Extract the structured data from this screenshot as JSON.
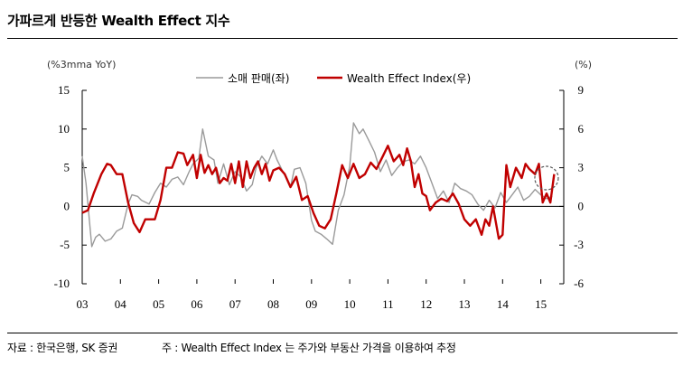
{
  "header": {
    "title": "가파르게 반등한 Wealth Effect 지수"
  },
  "footer": {
    "source": "자료 : 한국은행, SK 증권",
    "note": "주 : Wealth Effect Index 는 주가와 부동산 가격을 이용하여 추정"
  },
  "chart_data": {
    "type": "line",
    "left_unit": "(%3mma  YoY)",
    "right_unit": "(%)",
    "legend": {
      "placement": "top-center"
    },
    "x_ticks": [
      "03",
      "04",
      "05",
      "06",
      "07",
      "08",
      "09",
      "10",
      "11",
      "12",
      "13",
      "14",
      "15"
    ],
    "x_range": [
      2003.0,
      2015.6
    ],
    "y_left_range": [
      -10,
      15
    ],
    "y_left_ticks": [
      -10,
      -5,
      0,
      5,
      10,
      15
    ],
    "y_right_range": [
      -6,
      9
    ],
    "y_right_ticks": [
      -6,
      -3,
      0,
      3,
      6,
      9
    ],
    "grid": false,
    "series": [
      {
        "name": "소매 판매(좌)",
        "axis": "left",
        "color": "#9a9a9a",
        "x": [
          2003.0,
          2003.1,
          2003.25,
          2003.35,
          2003.45,
          2003.6,
          2003.75,
          2003.9,
          2004.05,
          2004.2,
          2004.3,
          2004.45,
          2004.55,
          2004.75,
          2004.9,
          2005.05,
          2005.2,
          2005.35,
          2005.5,
          2005.65,
          2005.8,
          2005.9,
          2006.05,
          2006.15,
          2006.3,
          2006.45,
          2006.55,
          2006.7,
          2006.85,
          2007.0,
          2007.15,
          2007.3,
          2007.45,
          2007.55,
          2007.7,
          2007.85,
          2008.0,
          2008.1,
          2008.2,
          2008.35,
          2008.45,
          2008.55,
          2008.7,
          2008.85,
          2009.0,
          2009.1,
          2009.25,
          2009.4,
          2009.55,
          2009.7,
          2009.85,
          2010.0,
          2010.1,
          2010.25,
          2010.35,
          2010.5,
          2010.65,
          2010.8,
          2010.95,
          2011.1,
          2011.25,
          2011.4,
          2011.55,
          2011.7,
          2011.85,
          2012.0,
          2012.15,
          2012.3,
          2012.45,
          2012.6,
          2012.75,
          2012.9,
          2013.05,
          2013.2,
          2013.35,
          2013.5,
          2013.65,
          2013.8,
          2013.95,
          2014.1,
          2014.25,
          2014.4,
          2014.55,
          2014.7,
          2014.85,
          2015.0,
          2015.15,
          2015.3
        ],
        "values": [
          6.5,
          3.0,
          -5.2,
          -4.0,
          -3.6,
          -4.5,
          -4.2,
          -3.2,
          -2.8,
          0.3,
          1.5,
          1.3,
          0.8,
          0.3,
          1.8,
          3.0,
          2.5,
          3.5,
          3.8,
          2.8,
          4.5,
          5.5,
          6.2,
          10.0,
          6.5,
          6.0,
          3.0,
          5.5,
          2.8,
          4.5,
          3.8,
          2.0,
          2.8,
          5.0,
          6.5,
          5.5,
          7.3,
          6.0,
          5.0,
          3.5,
          2.5,
          4.8,
          5.0,
          3.0,
          -1.8,
          -3.2,
          -3.6,
          -4.2,
          -4.9,
          -0.5,
          1.5,
          5.2,
          10.8,
          9.4,
          10.0,
          8.5,
          7.0,
          4.5,
          6.0,
          4.0,
          5.0,
          5.8,
          6.0,
          5.5,
          6.5,
          5.0,
          3.0,
          1.0,
          2.0,
          0.5,
          3.0,
          2.3,
          2.0,
          1.5,
          0.3,
          -0.5,
          0.8,
          -0.2,
          1.8,
          0.5,
          1.5,
          2.5,
          0.8,
          1.3,
          2.2,
          1.5,
          1.0,
          1.3
        ]
      },
      {
        "name": "Wealth Effect Index(우)",
        "axis": "right",
        "color": "#c00000",
        "x": [
          2003.0,
          2003.15,
          2003.3,
          2003.5,
          2003.65,
          2003.75,
          2003.9,
          2004.05,
          2004.2,
          2004.35,
          2004.5,
          2004.65,
          2004.75,
          2004.9,
          2005.05,
          2005.2,
          2005.35,
          2005.5,
          2005.65,
          2005.75,
          2005.9,
          2006.0,
          2006.1,
          2006.2,
          2006.3,
          2006.4,
          2006.5,
          2006.6,
          2006.7,
          2006.8,
          2006.9,
          2007.0,
          2007.1,
          2007.2,
          2007.3,
          2007.4,
          2007.5,
          2007.6,
          2007.7,
          2007.8,
          2007.9,
          2008.0,
          2008.15,
          2008.3,
          2008.45,
          2008.6,
          2008.75,
          2008.9,
          2009.05,
          2009.2,
          2009.35,
          2009.5,
          2009.65,
          2009.8,
          2009.95,
          2010.1,
          2010.25,
          2010.4,
          2010.55,
          2010.7,
          2010.85,
          2011.0,
          2011.15,
          2011.3,
          2011.4,
          2011.5,
          2011.6,
          2011.7,
          2011.8,
          2011.9,
          2012.0,
          2012.1,
          2012.25,
          2012.4,
          2012.55,
          2012.7,
          2012.85,
          2013.0,
          2013.15,
          2013.3,
          2013.45,
          2013.55,
          2013.65,
          2013.75,
          2013.9,
          2014.0,
          2014.1,
          2014.2,
          2014.35,
          2014.5,
          2014.6,
          2014.7,
          2014.85,
          2014.95,
          2015.05,
          2015.15,
          2015.25,
          2015.35
        ],
        "values": [
          -0.5,
          -0.3,
          1.0,
          2.5,
          3.3,
          3.2,
          2.5,
          2.5,
          0.3,
          -1.3,
          -2.0,
          -1.0,
          -1.0,
          -1.0,
          0.5,
          3.0,
          3.0,
          4.2,
          4.1,
          3.2,
          4.0,
          2.2,
          4.0,
          2.6,
          3.2,
          2.5,
          3.0,
          1.8,
          2.2,
          2.0,
          3.3,
          1.8,
          3.5,
          1.5,
          3.5,
          2.2,
          3.0,
          3.5,
          2.5,
          3.3,
          2.0,
          2.8,
          3.0,
          2.5,
          1.5,
          2.3,
          0.5,
          0.8,
          -0.5,
          -1.5,
          -1.7,
          -1.0,
          1.0,
          3.2,
          2.2,
          3.3,
          2.2,
          2.5,
          3.4,
          2.9,
          3.8,
          4.7,
          3.5,
          4.0,
          3.2,
          4.5,
          3.5,
          1.5,
          2.5,
          1.0,
          0.8,
          -0.3,
          0.3,
          0.6,
          0.4,
          1.0,
          0.2,
          -1.0,
          -1.5,
          -1.0,
          -2.2,
          -1.0,
          -1.5,
          0.0,
          -2.5,
          -2.2,
          3.2,
          1.5,
          3.0,
          2.2,
          3.3,
          2.9,
          2.5,
          3.3,
          0.3,
          1.0,
          0.3,
          2.5
        ]
      }
    ],
    "highlight": {
      "shape": "dashed-circle",
      "x": 2015.15,
      "axis": "right",
      "y": 2.2
    }
  }
}
